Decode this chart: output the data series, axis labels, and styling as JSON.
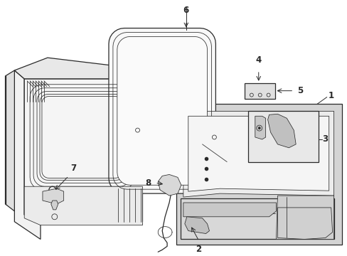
{
  "bg_color": "#ffffff",
  "line_color": "#2a2a2a",
  "gray_fill": "#d4d4d4",
  "mid_gray": "#e0e0e0",
  "light_gray": "#ebebeb",
  "figsize": [
    4.89,
    3.6
  ],
  "dpi": 100,
  "lw_main": 0.9,
  "lw_thin": 0.55,
  "lw_thick": 1.2
}
